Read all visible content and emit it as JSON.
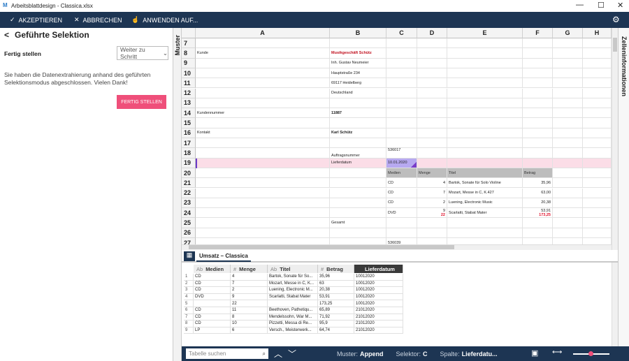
{
  "window": {
    "title": "Arbeitsblattdesign - Classica.xlsx"
  },
  "toolbar": {
    "items": [
      "AKZEPTIEREN",
      "ABBRECHEN",
      "ANWENDEN AUF..."
    ]
  },
  "left_panel": {
    "title": "Geführte Selektion",
    "step_label": "Fertig stellen",
    "dropdown": "Weiter zu Schritt",
    "message": "Sie haben die Datenextrahierung anhand des geführten Selektionsmodus abgeschlossen. Vielen Dank!",
    "button": "FERTIG STELLEN"
  },
  "side_tabs": {
    "left": "Muster",
    "right": "Zelleninformationen"
  },
  "sheet": {
    "columns": [
      "A",
      "B",
      "C",
      "D",
      "E",
      "F",
      "G",
      "H"
    ],
    "rows": [
      {
        "number": 7
      },
      {
        "number": 8,
        "cells": [
          "Kunde",
          "Musikgeschäft Schütz",
          null,
          null,
          null,
          null,
          null,
          null
        ]
      },
      {
        "number": 9,
        "cells": [
          null,
          "Inh. Gustav Neumeier",
          null,
          null,
          null,
          null,
          null,
          null
        ]
      },
      {
        "number": 10,
        "cells": [
          null,
          "Hauptstraße 234",
          null,
          null,
          null,
          null,
          null,
          null
        ]
      },
      {
        "number": 11,
        "cells": [
          null,
          "69117 Heidelberg",
          null,
          null,
          null,
          null,
          null,
          null
        ]
      },
      {
        "number": 12,
        "cells": [
          null,
          "Deutschland",
          null,
          null,
          null,
          null,
          null,
          null
        ]
      },
      {
        "number": 13
      },
      {
        "number": 14,
        "cells": [
          "Kundennummer",
          "11887",
          null,
          null,
          null,
          null,
          null,
          null
        ]
      },
      {
        "number": 15
      },
      {
        "number": 16,
        "cells": [
          "Kontakt",
          "Karl Schütz",
          null,
          null,
          null,
          null,
          null,
          null
        ]
      },
      {
        "number": 17
      },
      {
        "number": 18,
        "cells": [
          null,
          "Auftragsnummer",
          "536017",
          null,
          null,
          null,
          null,
          null
        ]
      },
      {
        "number": 19,
        "cells": [
          null,
          "Lieferdatum",
          "10.01.2020",
          null,
          null,
          null,
          null,
          null
        ]
      },
      {
        "number": 20,
        "cells": [
          null,
          null,
          "Medien",
          "Menge",
          "Titel",
          "Betrag",
          null,
          null
        ]
      },
      {
        "number": 21,
        "cells": [
          null,
          null,
          "CD",
          "4",
          "Bartok, Sonate für Solo Violine",
          "35,96",
          null,
          null
        ]
      },
      {
        "number": 22,
        "cells": [
          null,
          null,
          "CD",
          "7",
          "Mozart, Messe in C, K.427",
          "63,00",
          null,
          null
        ]
      },
      {
        "number": 23,
        "cells": [
          null,
          null,
          "CD",
          "2",
          "Luening, Electronic Music",
          "20,38",
          null,
          null
        ]
      },
      {
        "number": 24,
        "cells": [
          null,
          null,
          "DVD",
          [
            "9",
            "22"
          ],
          "Scarlatti, Stabat Mater",
          [
            "53,91",
            "173,25"
          ],
          null,
          null
        ]
      },
      {
        "number": 25,
        "cells": [
          null,
          "Gesamt",
          null,
          null,
          null,
          null,
          null,
          null
        ]
      },
      {
        "number": 26
      },
      {
        "number": 27,
        "cells": [
          null,
          null,
          "536039",
          null,
          null,
          null,
          null,
          null
        ]
      }
    ]
  },
  "sheet_tab": "Umsatz – Classica",
  "table": {
    "columns": [
      "Medien",
      "Menge",
      "Titel",
      "Betrag",
      "Lieferdatum"
    ],
    "rows": [
      [
        1,
        "CD",
        "4",
        "Bartok, Sonate für So...",
        "35,96",
        "10012020"
      ],
      [
        2,
        "CD",
        "7",
        "Mozart, Messe in C, K...",
        "63",
        "10012020"
      ],
      [
        3,
        "CD",
        "2",
        "Luening, Electronic M...",
        "20,38",
        "10012020"
      ],
      [
        4,
        "DVD",
        "9",
        "Scarlatti, Stabat Mater",
        "53,91",
        "10012020"
      ],
      [
        5,
        null,
        "22",
        null,
        "173,25",
        "10012020"
      ],
      [
        6,
        "CD",
        "11",
        "Beethoven, Pathetiqu...",
        "65,89",
        "21012020"
      ],
      [
        7,
        "CD",
        "8",
        "Mendelssohn, War M...",
        "71,92",
        "21012020"
      ],
      [
        8,
        "CD",
        "10",
        "Pizzetti, Messa di Re...",
        "95,9",
        "21012020"
      ],
      [
        9,
        "LP",
        "6",
        "Versch., Meisterwerk...",
        "64,74",
        "21012020"
      ]
    ]
  },
  "status_bar": {
    "search_placeholder": "Tabelle suchen",
    "items": [
      {
        "label": "Muster:",
        "value": "Append"
      },
      {
        "label": "Selektor:",
        "value": "C"
      },
      {
        "label": "Spalte:",
        "value": "Lieferdatu..."
      }
    ]
  }
}
